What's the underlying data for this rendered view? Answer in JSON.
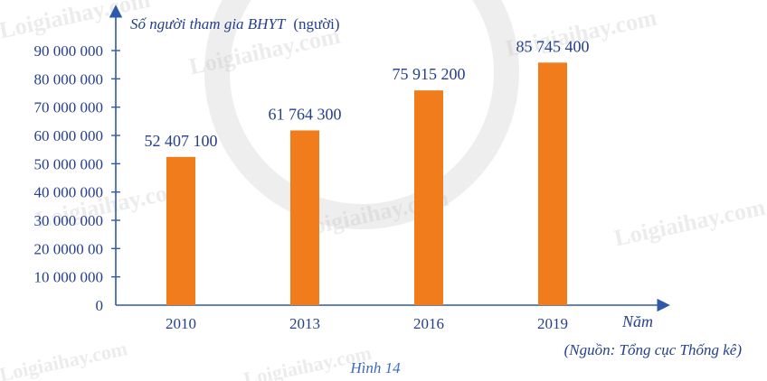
{
  "chart_data": {
    "type": "bar",
    "ylabel": "Số người tham gia BHYT",
    "ylabel_unit": "(người)",
    "xlabel": "Năm",
    "categories": [
      "2010",
      "2013",
      "2016",
      "2019"
    ],
    "values": [
      52407100,
      61764300,
      75915200,
      85745400
    ],
    "value_labels": [
      "52 407 100",
      "61 764 300",
      "75 915 200",
      "85 745 400"
    ],
    "y_ticks": [
      0,
      10000000,
      20000000,
      30000000,
      40000000,
      50000000,
      60000000,
      70000000,
      80000000,
      90000000
    ],
    "y_tick_labels": [
      "0",
      "10 000 000",
      "20 0000 00",
      "30 000 000",
      "40 000 000",
      "50 000 000",
      "60 000 000",
      "70 000 000",
      "80 000 000",
      "90 000 000"
    ],
    "ylim": [
      0,
      90000000
    ],
    "grid": false,
    "bar_color": "#f07c1b",
    "axis_color": "#2f5aa8",
    "text_color": "#26408b"
  },
  "source": "(Nguồn: Tổng cục Thống kê)",
  "caption": "Hình 14",
  "watermark": "Loigiaihay.com"
}
